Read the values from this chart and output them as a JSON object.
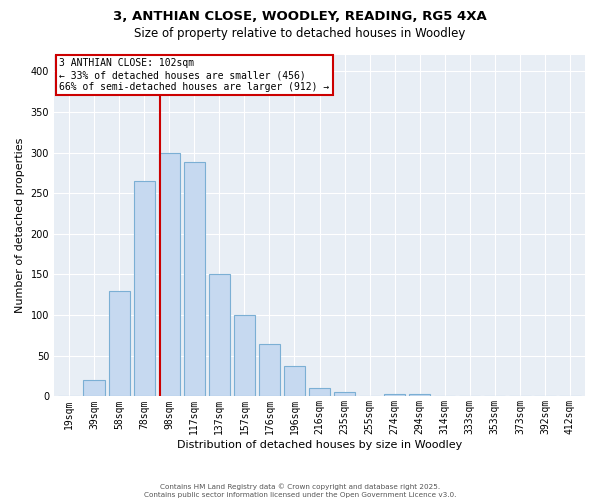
{
  "title": "3, ANTHIAN CLOSE, WOODLEY, READING, RG5 4XA",
  "subtitle": "Size of property relative to detached houses in Woodley",
  "xlabel": "Distribution of detached houses by size in Woodley",
  "ylabel": "Number of detached properties",
  "bar_labels": [
    "19sqm",
    "39sqm",
    "58sqm",
    "78sqm",
    "98sqm",
    "117sqm",
    "137sqm",
    "157sqm",
    "176sqm",
    "196sqm",
    "216sqm",
    "235sqm",
    "255sqm",
    "274sqm",
    "294sqm",
    "314sqm",
    "333sqm",
    "353sqm",
    "373sqm",
    "392sqm",
    "412sqm"
  ],
  "bar_centers": [
    0,
    1,
    2,
    3,
    4,
    5,
    6,
    7,
    8,
    9,
    10,
    11,
    12,
    13,
    14,
    15,
    16,
    17,
    18,
    19,
    20
  ],
  "bar_heights": [
    0,
    20,
    130,
    265,
    300,
    288,
    150,
    100,
    65,
    38,
    10,
    5,
    0,
    3,
    3,
    0,
    0,
    0,
    0,
    0,
    0
  ],
  "bar_color": "#c6d9f0",
  "bar_edgecolor": "#7bafd4",
  "vline_idx": 3.65,
  "vline_color": "#cc0000",
  "annotation_text": "3 ANTHIAN CLOSE: 102sqm\n← 33% of detached houses are smaller (456)\n66% of semi-detached houses are larger (912) →",
  "annotation_box_facecolor": "#ffffff",
  "annotation_box_edgecolor": "#cc0000",
  "ylim": [
    0,
    420
  ],
  "yticks": [
    0,
    50,
    100,
    150,
    200,
    250,
    300,
    350,
    400
  ],
  "bg_color": "#e8eef5",
  "grid_color": "#ffffff",
  "footer_line1": "Contains HM Land Registry data © Crown copyright and database right 2025.",
  "footer_line2": "Contains public sector information licensed under the Open Government Licence v3.0."
}
